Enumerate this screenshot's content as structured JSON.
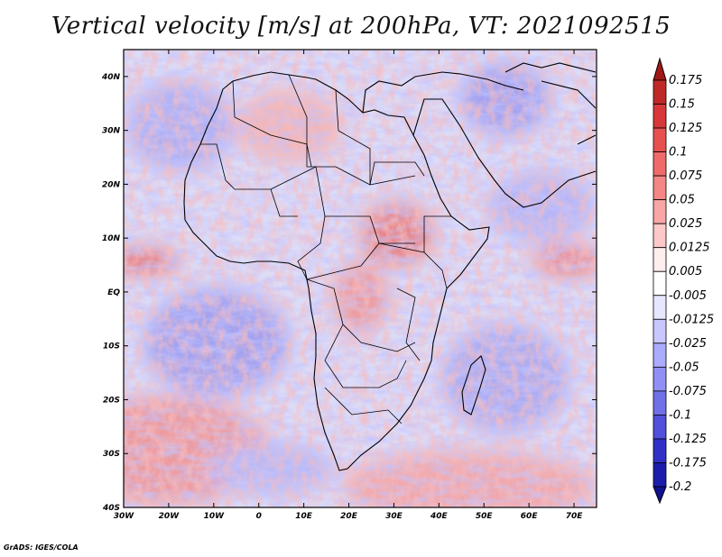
{
  "title": "Vertical velocity [m/s] at 200hPa, VT: 2021092515",
  "credit": "GrADS: IGES/COLA",
  "map": {
    "lon_range": [
      -30,
      75
    ],
    "lat_range": [
      -40,
      45
    ],
    "lon_ticks": [
      "30W",
      "20W",
      "10W",
      "0",
      "10E",
      "20E",
      "30E",
      "40E",
      "50E",
      "60E",
      "70E"
    ],
    "lat_ticks": [
      "40S",
      "30S",
      "20S",
      "10S",
      "EQ",
      "10N",
      "20N",
      "30N",
      "40N"
    ]
  },
  "colorbar": {
    "labels": [
      "0.175",
      "0.15",
      "0.125",
      "0.1",
      "0.075",
      "0.05",
      "0.025",
      "0.0125",
      "0.005",
      "-0.005",
      "-0.0125",
      "-0.025",
      "-0.05",
      "-0.075",
      "-0.1",
      "-0.125",
      "-0.175",
      "-0.2"
    ],
    "colors": [
      "#a01818",
      "#c02828",
      "#d83838",
      "#e85050",
      "#f06a6a",
      "#f48686",
      "#f8a6a6",
      "#fcc8c8",
      "#ffeeee",
      "#ffffff",
      "#e6e6ff",
      "#c8c8ff",
      "#acacff",
      "#9090f4",
      "#7070e8",
      "#5050dc",
      "#3030c8",
      "#1c1cac",
      "#101090"
    ]
  }
}
